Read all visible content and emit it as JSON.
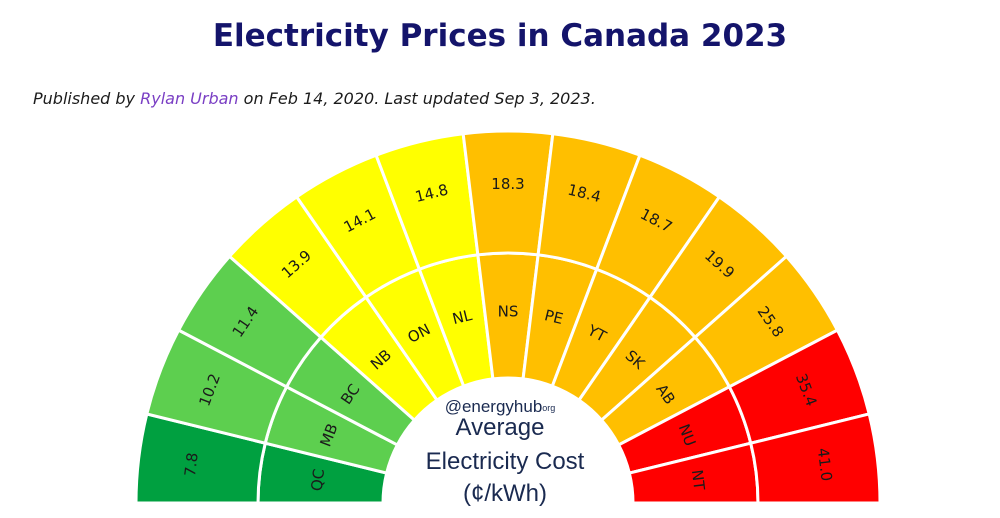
{
  "page": {
    "title": "Electricity Prices in Canada 2023",
    "byline_prefix": "Published by ",
    "author": "Rylan Urban",
    "byline_suffix": " on Feb 14, 2020. Last updated Sep 3, 2023."
  },
  "chart_data": {
    "type": "radial-bar",
    "unit": "¢/kWh",
    "center_label": {
      "brand": "@energyhub",
      "brand_suffix": "org",
      "line1": "Average",
      "line2": "Electricity Cost",
      "line3": "(¢/kWh)"
    },
    "categories": [
      "QC",
      "MB",
      "BC",
      "NB",
      "ON",
      "NL",
      "NS",
      "PE",
      "YT",
      "SK",
      "AB",
      "NU",
      "NT"
    ],
    "values": [
      7.8,
      10.2,
      11.4,
      13.9,
      14.1,
      14.8,
      18.3,
      18.4,
      18.7,
      19.9,
      25.8,
      35.4,
      41.0
    ],
    "value_labels": [
      "7.8",
      "10.2",
      "11.4",
      "13.9",
      "14.1",
      "14.8",
      "18.3",
      "18.4",
      "18.7",
      "19.9",
      "25.8",
      "35.4",
      "41.0"
    ],
    "colors": {
      "green_dark": "#00a040",
      "green": "#5dcf4f",
      "yellow": "#ffff00",
      "orange": "#ffbf00",
      "red": "#ff0000"
    },
    "color_groups": [
      "green_dark",
      "green",
      "green",
      "yellow",
      "yellow",
      "yellow",
      "orange",
      "orange",
      "orange",
      "orange",
      "orange",
      "red",
      "red"
    ]
  }
}
